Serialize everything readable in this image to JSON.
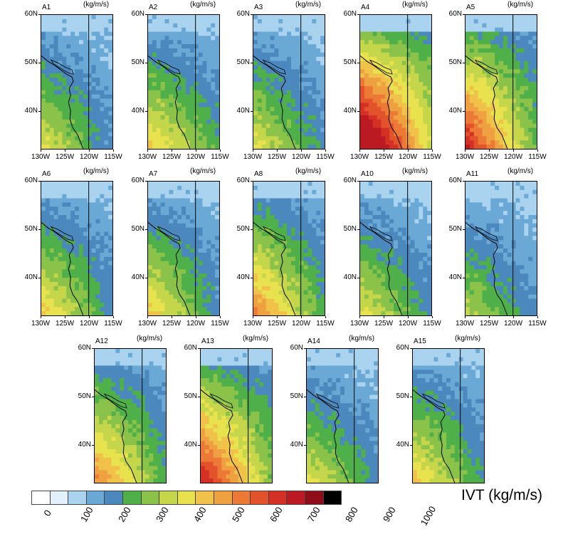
{
  "units": "(kg/m/s)",
  "lat_ticks": [
    "60N",
    "50N",
    "40N"
  ],
  "lon_ticks": [
    "130W",
    "125W",
    "120W",
    "115W"
  ],
  "panels": [
    {
      "id": "A1",
      "intensity": 0.35,
      "south_bias": 0.4,
      "show_lat": true,
      "show_lon": true
    },
    {
      "id": "A2",
      "intensity": 0.4,
      "south_bias": 0.2,
      "show_lat": true,
      "show_lon": true
    },
    {
      "id": "A3",
      "intensity": 0.35,
      "south_bias": 0.3,
      "show_lat": true,
      "show_lon": true
    },
    {
      "id": "A4",
      "intensity": 0.85,
      "south_bias": 0.4,
      "show_lat": true,
      "show_lon": true
    },
    {
      "id": "A5",
      "intensity": 0.65,
      "south_bias": 0.5,
      "show_lat": true,
      "show_lon": true
    },
    {
      "id": "A6",
      "intensity": 0.4,
      "south_bias": 0.4,
      "show_lat": true,
      "show_lon": true
    },
    {
      "id": "A7",
      "intensity": 0.4,
      "south_bias": 0.4,
      "show_lat": true,
      "show_lon": true
    },
    {
      "id": "A8",
      "intensity": 0.5,
      "south_bias": 0.4,
      "show_lat": true,
      "show_lon": true
    },
    {
      "id": "A10",
      "intensity": 0.35,
      "south_bias": 0.3,
      "show_lat": true,
      "show_lon": true
    },
    {
      "id": "A11",
      "intensity": 0.3,
      "south_bias": 0.3,
      "show_lat": true,
      "show_lon": true
    },
    {
      "id": "A12",
      "intensity": 0.5,
      "south_bias": 0.4,
      "show_lat": true,
      "show_lon": false
    },
    {
      "id": "A13",
      "intensity": 0.65,
      "south_bias": 0.4,
      "show_lat": true,
      "show_lon": false
    },
    {
      "id": "A14",
      "intensity": 0.35,
      "south_bias": 0.3,
      "show_lat": true,
      "show_lon": false
    },
    {
      "id": "A15",
      "intensity": 0.4,
      "south_bias": 0.3,
      "show_lat": true,
      "show_lon": false
    }
  ],
  "colorbar": {
    "title": "IVT (kg/m/s)",
    "colors": [
      "#ffffff",
      "#e2f1fb",
      "#a9d3ef",
      "#6aa8d6",
      "#4a88bd",
      "#4fb04a",
      "#8ac24a",
      "#c5d64a",
      "#e8e24f",
      "#f1c24a",
      "#efa040",
      "#ec7a36",
      "#e2532c",
      "#d43025",
      "#bc1a23",
      "#8f0d18",
      "#5a0008",
      "#000000"
    ],
    "tick_labels": [
      "0",
      "100",
      "200",
      "300",
      "400",
      "500",
      "600",
      "700",
      "800",
      "900",
      "1000"
    ]
  }
}
